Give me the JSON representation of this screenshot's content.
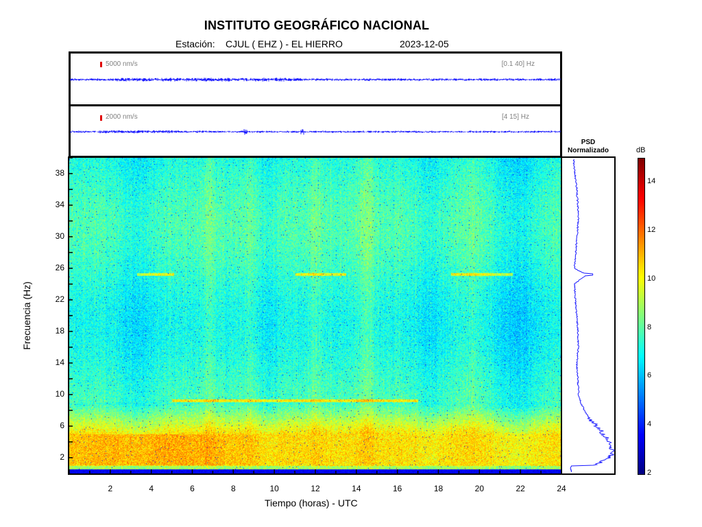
{
  "header": {
    "title": "INSTITUTO GEOGRÁFICO NACIONAL",
    "station_label": "Estación:",
    "station": "CJUL ( EHZ ) - EL HIERRO",
    "date": "2023-12-05"
  },
  "traces": [
    {
      "scale": "5000 nm/s",
      "band": "[0.1 40]  Hz"
    },
    {
      "scale": "2000 nm/s",
      "band": "[4 15]  Hz"
    }
  ],
  "psd": {
    "title_line1": "PSD",
    "title_line2": "Normalizado"
  },
  "colors": {
    "trace": "#1a1aff",
    "scale_bar": "#e00000",
    "psd_line": "#1a1aff"
  },
  "chart_data": {
    "type": "heatmap",
    "title": "INSTITUTO GEOGRÁFICO NACIONAL",
    "xlabel": "Tiempo (horas) - UTC",
    "ylabel": "Frecuencia  (Hz)",
    "xlim": [
      0,
      24
    ],
    "ylim": [
      0,
      40
    ],
    "xticks": [
      2,
      4,
      6,
      8,
      10,
      12,
      14,
      16,
      18,
      20,
      22,
      24
    ],
    "yticks": [
      2,
      6,
      10,
      14,
      18,
      22,
      26,
      30,
      34,
      38
    ],
    "colorbar": {
      "label": "dB",
      "range": [
        2,
        15
      ],
      "ticks": [
        2,
        4,
        6,
        8,
        10,
        12,
        14
      ],
      "colormap": "jet"
    },
    "description_bands": [
      {
        "freq_range": [
          0,
          5
        ],
        "level_db": 10.5
      },
      {
        "freq_range": [
          5,
          9
        ],
        "level_db": 9.5
      },
      {
        "freq_range": [
          9,
          40
        ],
        "level_db": 7.5
      }
    ],
    "narrowband_lines": [
      {
        "freq": 25.2,
        "time_range": [
          3.3,
          5.1
        ]
      },
      {
        "freq": 25.2,
        "time_range": [
          11.0,
          13.5
        ]
      },
      {
        "freq": 25.2,
        "time_range": [
          18.6,
          21.6
        ]
      },
      {
        "freq": 9.2,
        "time_range": [
          5.0,
          17.0
        ]
      }
    ],
    "psd_profile": [
      {
        "freq": 1,
        "value": 0.55
      },
      {
        "freq": 2,
        "value": 0.92
      },
      {
        "freq": 3,
        "value": 0.95
      },
      {
        "freq": 4,
        "value": 0.9
      },
      {
        "freq": 5,
        "value": 0.78
      },
      {
        "freq": 6,
        "value": 0.62
      },
      {
        "freq": 7,
        "value": 0.48
      },
      {
        "freq": 8,
        "value": 0.38
      },
      {
        "freq": 9,
        "value": 0.3
      },
      {
        "freq": 10,
        "value": 0.26
      },
      {
        "freq": 12,
        "value": 0.24
      },
      {
        "freq": 14,
        "value": 0.22
      },
      {
        "freq": 16,
        "value": 0.25
      },
      {
        "freq": 18,
        "value": 0.24
      },
      {
        "freq": 20,
        "value": 0.22
      },
      {
        "freq": 22,
        "value": 0.19
      },
      {
        "freq": 24,
        "value": 0.17
      },
      {
        "freq": 25.2,
        "value": 0.42
      },
      {
        "freq": 26,
        "value": 0.17
      },
      {
        "freq": 28,
        "value": 0.2
      },
      {
        "freq": 30,
        "value": 0.22
      },
      {
        "freq": 32,
        "value": 0.25
      },
      {
        "freq": 34,
        "value": 0.24
      },
      {
        "freq": 36,
        "value": 0.22
      },
      {
        "freq": 38,
        "value": 0.18
      },
      {
        "freq": 40,
        "value": 0.15
      }
    ]
  }
}
